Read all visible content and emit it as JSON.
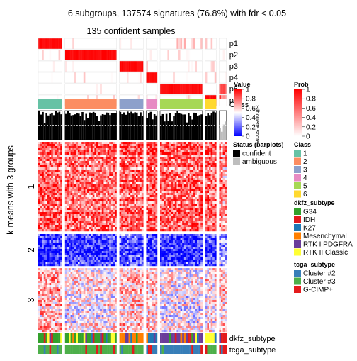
{
  "chart_data": {
    "type": "heatmap",
    "title": "6 subgroups, 137574 signatures (76.8%) with fdr < 0.05",
    "subtitle": "135 confident samples",
    "ylabel": "k-means with 3 groups",
    "row_groups": [
      "1",
      "2",
      "3"
    ],
    "row_group_counts": [
      130,
      46,
      94
    ],
    "column_groups": [
      {
        "class": "1",
        "n": 13,
        "color": "#66C2A5"
      },
      {
        "class": "2",
        "n": 28,
        "color": "#FC8D62"
      },
      {
        "class": "3",
        "n": 13,
        "color": "#8DA0CB"
      },
      {
        "class": "4",
        "n": 6,
        "color": "#E78AC3"
      },
      {
        "class": "5",
        "n": 23,
        "color": "#A6D854"
      },
      {
        "class": "6",
        "n": 6,
        "color": "#FFD92F"
      },
      {
        "class": "",
        "n": 4,
        "color": "#FFFFFF"
      }
    ],
    "prob_tracks": [
      "p1",
      "p2",
      "p3",
      "p4",
      "p5",
      "p6"
    ],
    "class_track_label": "Class",
    "silhouette_label": "Silhouette score",
    "silhouette_cutoff": 0.5,
    "bottom_tracks": [
      "dkfz_subtype",
      "tcga_subtype"
    ],
    "value_legend": {
      "title": "Value",
      "ticks": [
        "1",
        "0.8",
        "0.6",
        "0.4",
        "0.2",
        "0"
      ],
      "colors": [
        "#FF0000",
        "#FFFFFF",
        "#0000FF"
      ]
    },
    "prob_legend": {
      "title": "Prob",
      "ticks": [
        "1",
        "0.8",
        "0.6",
        "0.4",
        "0.2",
        "0"
      ],
      "colors": [
        "#FFFFFF",
        "#FF0000"
      ]
    },
    "status_legend": {
      "title": "Status (barplots)",
      "items": [
        {
          "label": "confident",
          "color": "#000000"
        },
        {
          "label": "ambiguous",
          "color": "#BEBEBE"
        }
      ]
    },
    "class_legend": {
      "title": "Class",
      "items": [
        {
          "label": "1",
          "color": "#66C2A5"
        },
        {
          "label": "2",
          "color": "#FC8D62"
        },
        {
          "label": "3",
          "color": "#8DA0CB"
        },
        {
          "label": "4",
          "color": "#E78AC3"
        },
        {
          "label": "5",
          "color": "#A6D854"
        },
        {
          "label": "6",
          "color": "#FFD92F"
        }
      ]
    },
    "dkfz_legend": {
      "title": "dkfz_subtype",
      "items": [
        {
          "label": "G34",
          "color": "#33A02C"
        },
        {
          "label": "IDH",
          "color": "#E31A1C"
        },
        {
          "label": "K27",
          "color": "#1F78B4"
        },
        {
          "label": "Mesenchymal",
          "color": "#FF7F00"
        },
        {
          "label": "RTK I PDGFRA",
          "color": "#6A3D9A"
        },
        {
          "label": "RTK II Classic",
          "color": "#FFFF33"
        }
      ]
    },
    "tcga_legend": {
      "title": "tcga_subtype",
      "items": [
        {
          "label": "Cluster #2",
          "color": "#377EB8"
        },
        {
          "label": "Cluster #3",
          "color": "#4DAF4A"
        },
        {
          "label": "G-CIMP+",
          "color": "#E41A1C"
        }
      ]
    }
  }
}
